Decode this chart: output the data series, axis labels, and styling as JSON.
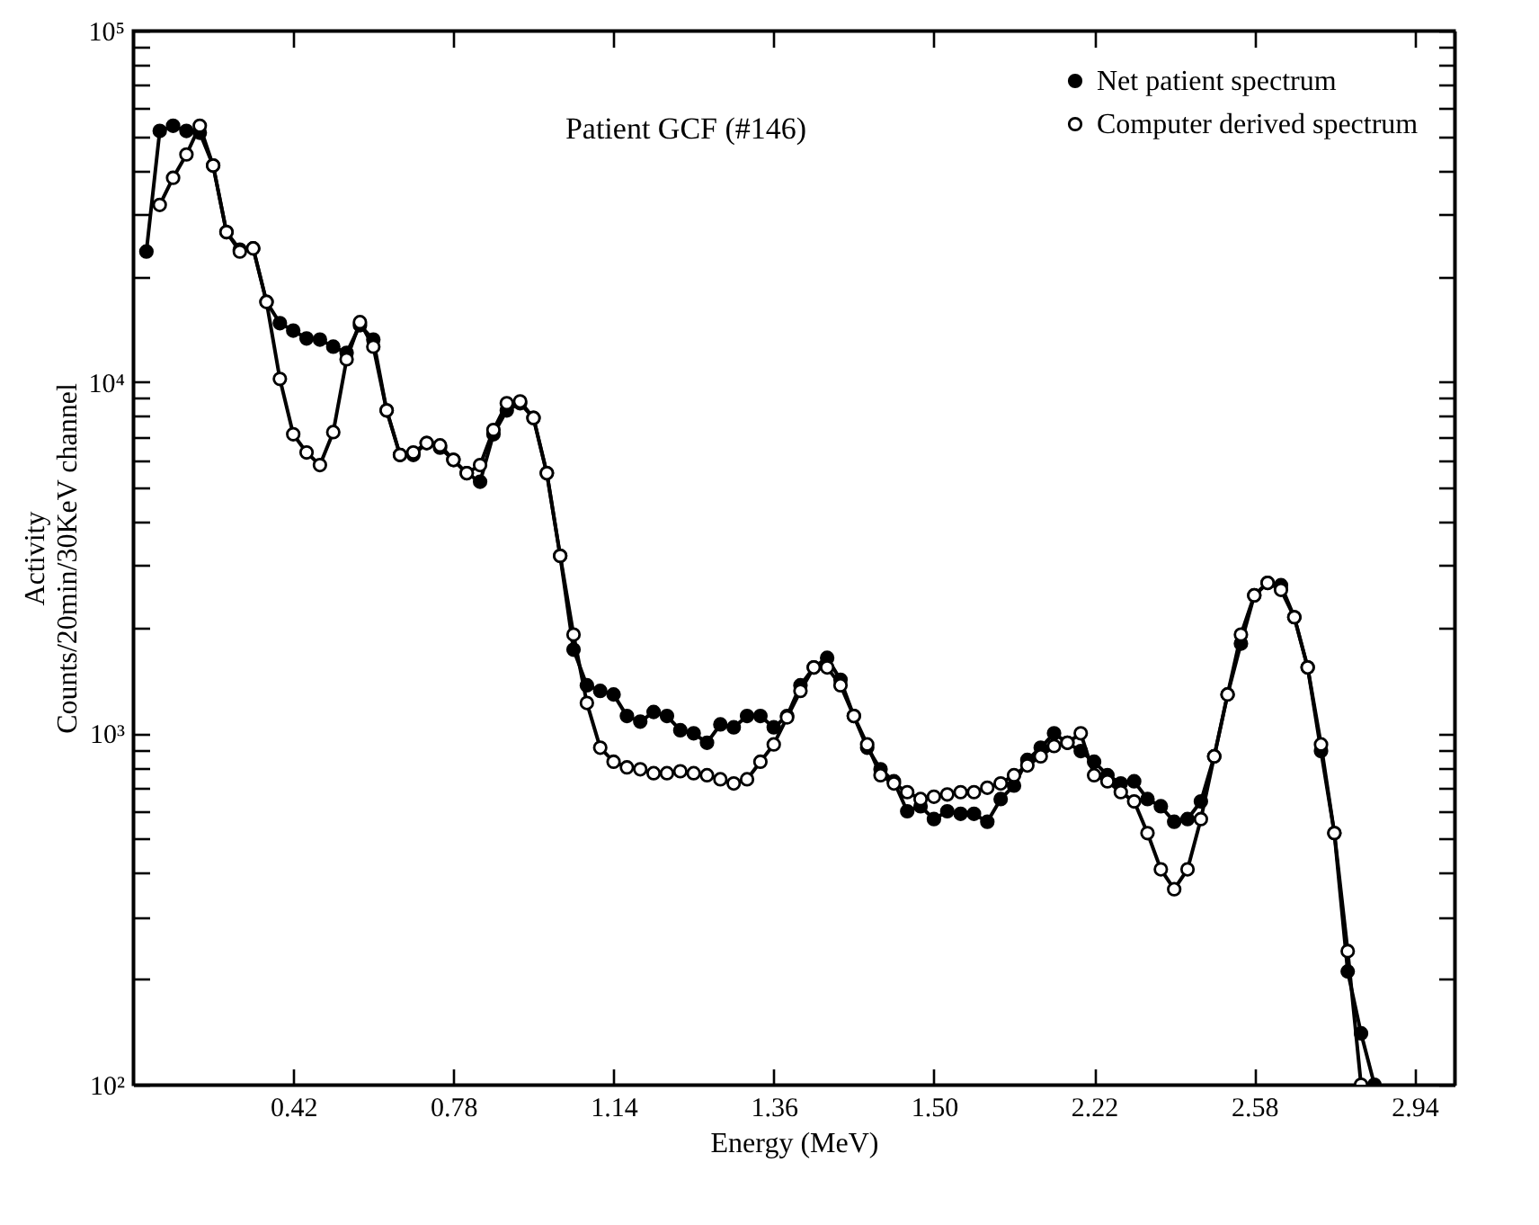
{
  "chart_data": {
    "type": "line",
    "title": "Patient GCF (#146)",
    "xlabel": "Energy (MeV)",
    "ylabel": "Activity\nCounts/20min/30KeV channel",
    "log": "y",
    "ylim": [
      100,
      100000
    ],
    "categories": [
      null,
      null,
      null,
      null,
      null,
      null,
      null,
      null,
      null,
      null,
      null,
      "0.42",
      null,
      null,
      null,
      null,
      null,
      null,
      null,
      null,
      null,
      null,
      null,
      "0.78",
      null,
      null,
      null,
      null,
      null,
      null,
      null,
      null,
      null,
      null,
      null,
      "1.14",
      null,
      null,
      null,
      null,
      null,
      null,
      null,
      null,
      null,
      null,
      null,
      "1.36",
      null,
      null,
      null,
      null,
      null,
      null,
      null,
      null,
      null,
      null,
      null,
      "1.50",
      null,
      null,
      null,
      null,
      null,
      null,
      null,
      null,
      null,
      null,
      null,
      "2.22",
      null,
      null,
      null,
      null,
      null,
      null,
      null,
      null,
      null,
      null,
      null,
      "2.58",
      null,
      null,
      null,
      null,
      null,
      null,
      null,
      null,
      null,
      null,
      null,
      "2.94",
      null,
      null
    ],
    "yticks": [
      {
        "value": 100,
        "label": "10²"
      },
      {
        "value": 200,
        "label": null
      },
      {
        "value": 300,
        "label": null
      },
      {
        "value": 400,
        "label": null
      },
      {
        "value": 500,
        "label": null
      },
      {
        "value": 600,
        "label": null
      },
      {
        "value": 700,
        "label": null
      },
      {
        "value": 800,
        "label": null
      },
      {
        "value": 900,
        "label": null
      },
      {
        "value": 1000,
        "label": "10³"
      },
      {
        "value": 2000,
        "label": null
      },
      {
        "value": 3000,
        "label": null
      },
      {
        "value": 4000,
        "label": null
      },
      {
        "value": 5000,
        "label": null
      },
      {
        "value": 6000,
        "label": null
      },
      {
        "value": 7000,
        "label": null
      },
      {
        "value": 8000,
        "label": null
      },
      {
        "value": 9000,
        "label": null
      },
      {
        "value": 10000,
        "label": "10⁴"
      },
      {
        "value": 20000,
        "label": null
      },
      {
        "value": 30000,
        "label": null
      },
      {
        "value": 40000,
        "label": null
      },
      {
        "value": 50000,
        "label": null
      },
      {
        "value": 60000,
        "label": null
      },
      {
        "value": 70000,
        "label": null
      },
      {
        "value": 80000,
        "label": null
      },
      {
        "value": 90000,
        "label": null
      },
      {
        "value": 100000,
        "label": "10⁵"
      }
    ],
    "legend": "top right",
    "marker": "circle",
    "line_style": "solid",
    "series": [
      {
        "name": "Net patient spectrum",
        "color": "#000000",
        "values": [
          23500,
          51800,
          53600,
          51800,
          51200,
          41300,
          26700,
          23800,
          24000,
          16900,
          14700,
          14000,
          13300,
          13200,
          12600,
          12100,
          14500,
          13200,
          8300,
          6200,
          6200,
          6700,
          6500,
          6000,
          5500,
          5200,
          7100,
          8300,
          8700,
          7900,
          5500,
          3200,
          1730,
          1370,
          1320,
          1290,
          1120,
          1080,
          1150,
          1120,
          1020,
          1000,
          940,
          1060,
          1040,
          1120,
          1120,
          1040,
          1120,
          1370,
          1540,
          1640,
          1420,
          1120,
          910,
          790,
          730,
          600,
          620,
          570,
          600,
          590,
          590,
          560,
          650,
          710,
          840,
          910,
          1000,
          940,
          890,
          830,
          760,
          720,
          730,
          650,
          620,
          560,
          570,
          640,
          860,
          1290,
          1800,
          2470,
          2680,
          2640,
          2140,
          1540,
          890,
          520,
          210,
          140,
          100,
          null,
          null,
          null,
          null,
          null
        ]
      },
      {
        "name": "Computer derived spectrum",
        "color": "#000000",
        "values": [
          null,
          31900,
          38100,
          44400,
          53600,
          41300,
          26700,
          23500,
          24000,
          16900,
          10200,
          7100,
          6300,
          5800,
          7200,
          11600,
          14800,
          12600,
          8300,
          6200,
          6300,
          6700,
          6600,
          6000,
          5500,
          5800,
          7300,
          8700,
          8800,
          7900,
          5500,
          3200,
          1910,
          1220,
          910,
          830,
          800,
          790,
          770,
          770,
          780,
          770,
          760,
          740,
          720,
          740,
          830,
          930,
          1110,
          1320,
          1540,
          1540,
          1370,
          1120,
          930,
          760,
          720,
          680,
          650,
          660,
          670,
          680,
          680,
          700,
          720,
          760,
          810,
          860,
          920,
          940,
          1000,
          760,
          730,
          680,
          640,
          520,
          410,
          360,
          410,
          570,
          860,
          1290,
          1910,
          2470,
          2680,
          2560,
          2140,
          1540,
          930,
          520,
          240,
          100,
          null,
          null,
          null,
          null,
          null,
          null
        ]
      }
    ]
  }
}
